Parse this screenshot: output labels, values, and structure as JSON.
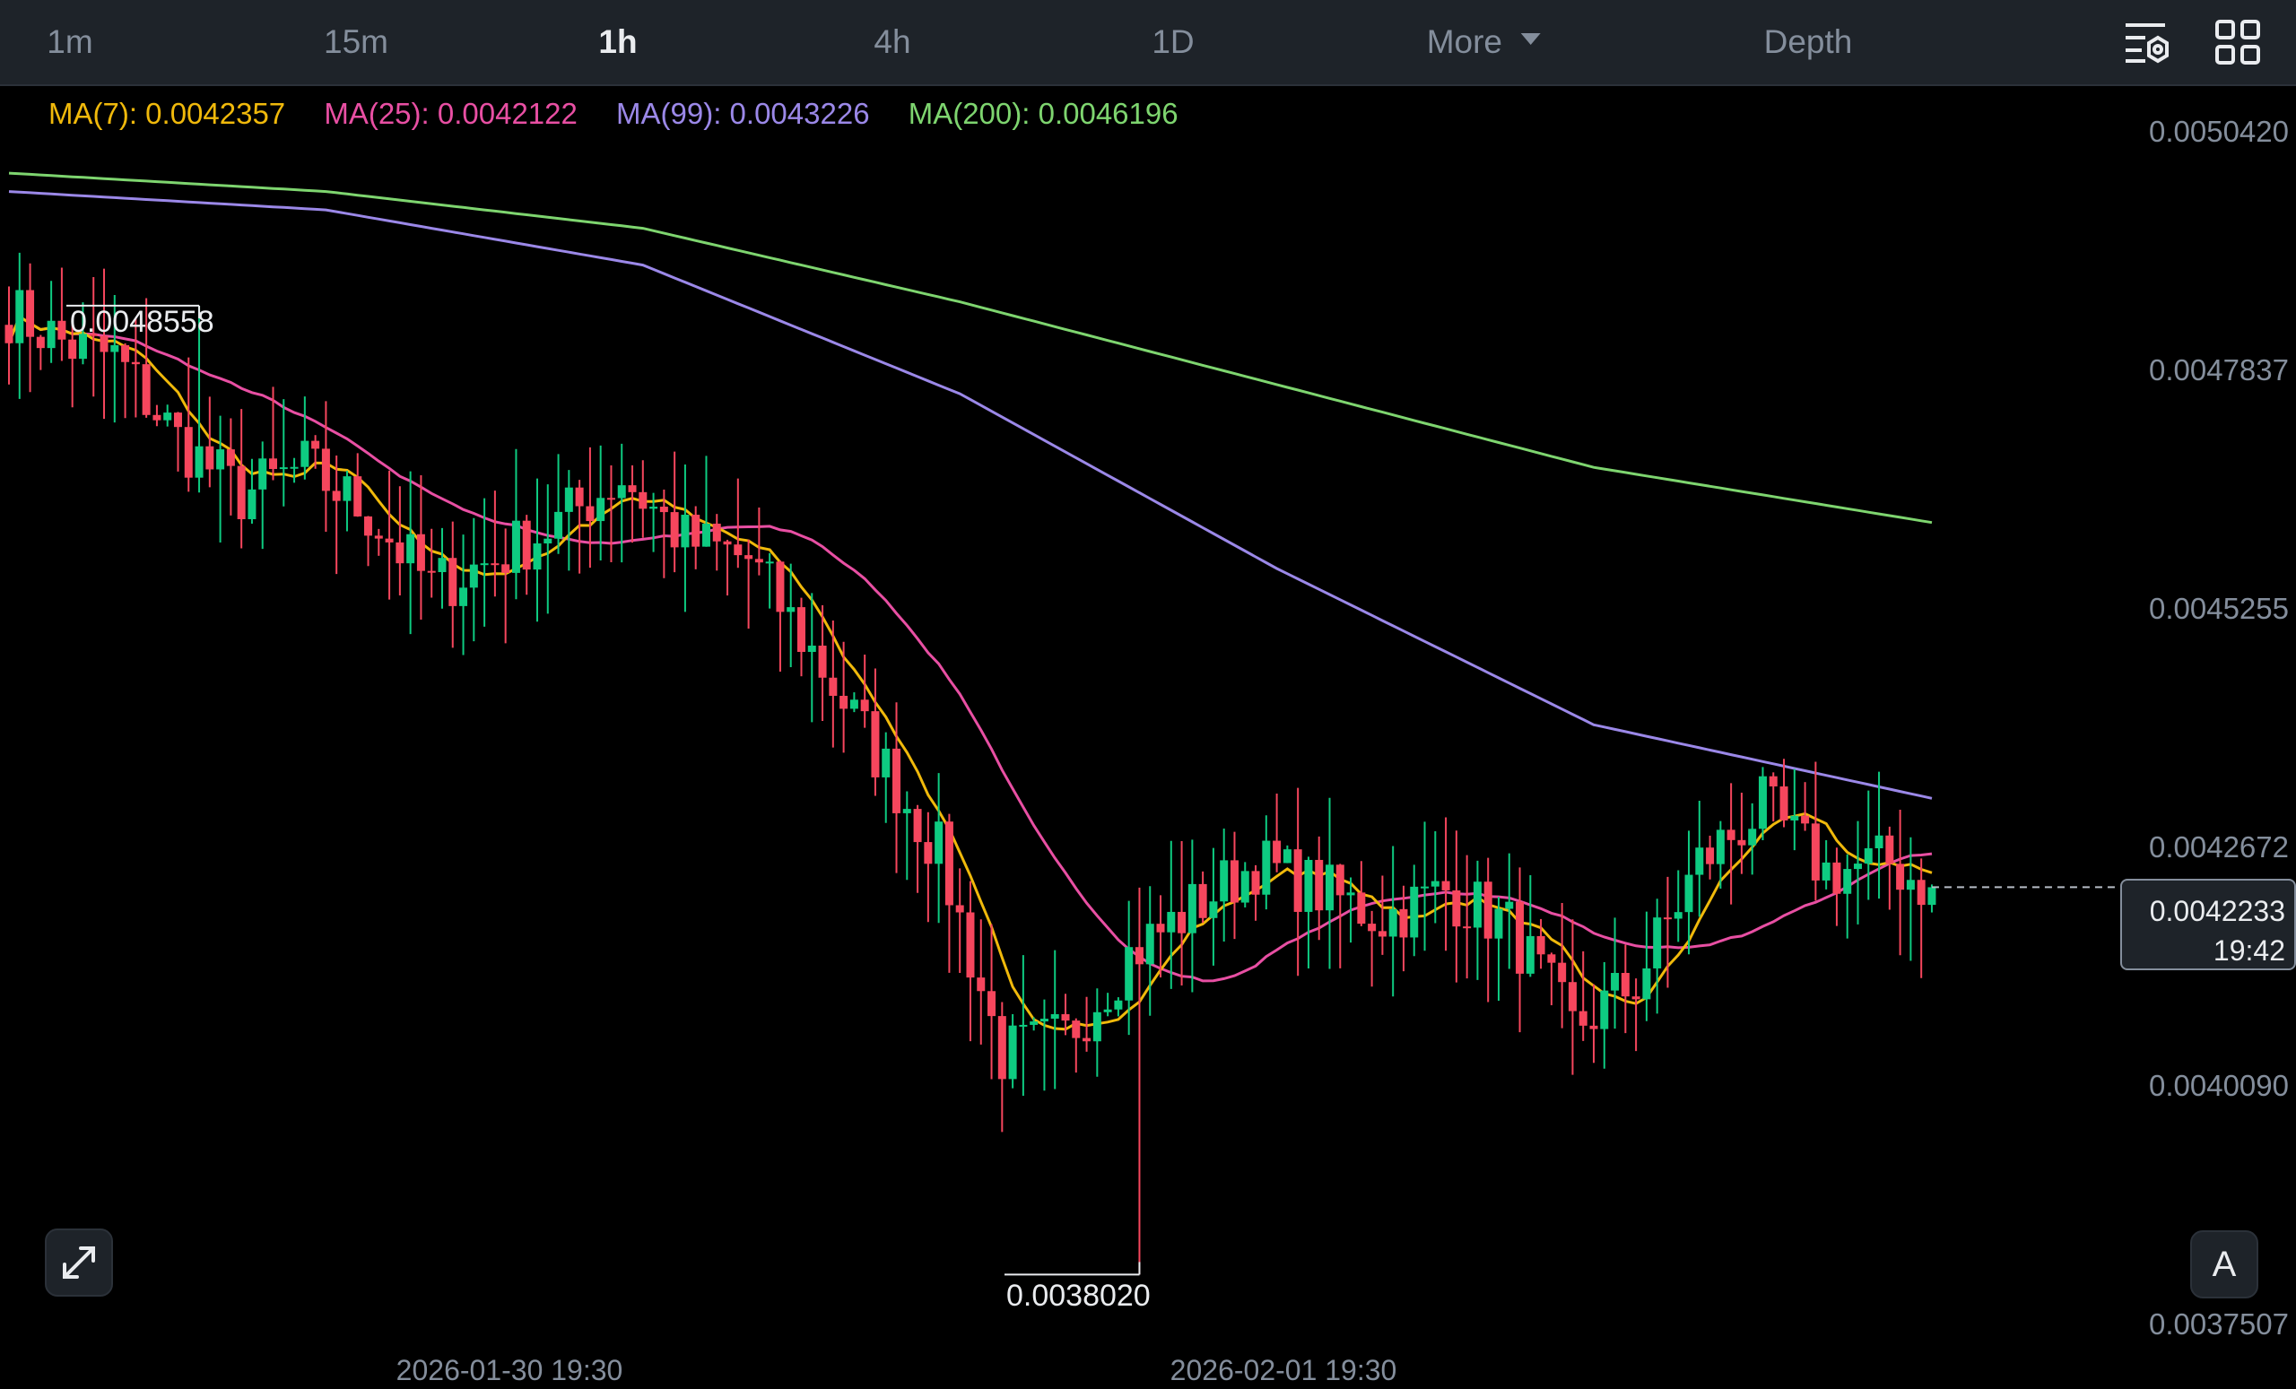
{
  "toolbar": {
    "timeframes": [
      {
        "label": "1m",
        "active": false
      },
      {
        "label": "15m",
        "active": false
      },
      {
        "label": "1h",
        "active": true
      },
      {
        "label": "4h",
        "active": false
      },
      {
        "label": "1D",
        "active": false
      },
      {
        "label": "More",
        "active": false
      },
      {
        "label": "Depth",
        "active": false
      }
    ],
    "icons": [
      "indicator-settings-icon",
      "layout-grid-icon"
    ]
  },
  "indicators": {
    "ma7": {
      "label": "MA(7): 0.0042357",
      "color": "#f0b90b"
    },
    "ma25": {
      "label": "MA(25): 0.0042122",
      "color": "#e84fa3"
    },
    "ma99": {
      "label": "MA(99): 0.0043226",
      "color": "#9b88e8"
    },
    "ma200": {
      "label": "MA(200): 0.0046196",
      "color": "#7ed56f"
    }
  },
  "price_axis": {
    "ticks": [
      "0.0050420",
      "0.0047837",
      "0.0045255",
      "0.0042672",
      "0.0040090",
      "0.0037507"
    ],
    "current_price": "0.0042233",
    "countdown": "19:42"
  },
  "time_axis": {
    "ticks": [
      "2026-01-30 19:30",
      "2026-02-01 19:30"
    ]
  },
  "annotations": {
    "high": "0.0048558",
    "low": "0.0038020"
  },
  "buttons": {
    "auto_scale": "A"
  },
  "colors": {
    "up": "#0ecb81",
    "down": "#f6465d",
    "background": "#000000",
    "toolbar": "#1e2329"
  },
  "chart_data": {
    "type": "candlestick",
    "interval": "1h",
    "ylim": [
      0.0037507,
      0.005042
    ],
    "price_levels": [
      0.005042,
      0.0047837,
      0.0045255,
      0.0042672,
      0.004009,
      0.0037507
    ],
    "last_price": 0.0042233,
    "period_high": 0.0048558,
    "period_low": 0.003802,
    "close_waypoints": [
      [
        0,
        0.00485
      ],
      [
        6,
        0.00481
      ],
      [
        10,
        0.0048
      ],
      [
        16,
        0.00471
      ],
      [
        22,
        0.00465
      ],
      [
        28,
        0.00468
      ],
      [
        34,
        0.00463
      ],
      [
        40,
        0.00455
      ],
      [
        46,
        0.00458
      ],
      [
        52,
        0.00462
      ],
      [
        58,
        0.00467
      ],
      [
        64,
        0.0046
      ],
      [
        70,
        0.00458
      ],
      [
        76,
        0.00448
      ],
      [
        82,
        0.00437
      ],
      [
        88,
        0.00426
      ],
      [
        94,
        0.00404
      ],
      [
        100,
        0.00406
      ],
      [
        106,
        0.00415
      ],
      [
        112,
        0.0042
      ],
      [
        118,
        0.00425
      ],
      [
        124,
        0.00422
      ],
      [
        130,
        0.00419
      ],
      [
        136,
        0.00422
      ],
      [
        142,
        0.00418
      ],
      [
        148,
        0.00407
      ],
      [
        154,
        0.00412
      ],
      [
        160,
        0.00425
      ],
      [
        166,
        0.00431
      ],
      [
        172,
        0.00424
      ],
      [
        178,
        0.00425
      ],
      [
        182,
        0.00422
      ]
    ],
    "series": [
      {
        "name": "MA(7)",
        "value": 0.0042357,
        "color": "#f0b90b"
      },
      {
        "name": "MA(25)",
        "value": 0.0042122,
        "color": "#e84fa3"
      },
      {
        "name": "MA(99)",
        "value": 0.0043226,
        "color": "#9b88e8"
      },
      {
        "name": "MA(200)",
        "value": 0.0046196,
        "color": "#7ed56f"
      }
    ],
    "ma_waypoints": {
      "ma99": [
        [
          0,
          0.00498
        ],
        [
          30,
          0.00496
        ],
        [
          60,
          0.0049
        ],
        [
          90,
          0.00476
        ],
        [
          120,
          0.00457
        ],
        [
          150,
          0.0044
        ],
        [
          182,
          0.00432
        ]
      ],
      "ma200": [
        [
          0,
          0.005
        ],
        [
          30,
          0.00498
        ],
        [
          60,
          0.00494
        ],
        [
          90,
          0.00486
        ],
        [
          120,
          0.00477
        ],
        [
          150,
          0.00468
        ],
        [
          182,
          0.00462
        ]
      ]
    }
  }
}
